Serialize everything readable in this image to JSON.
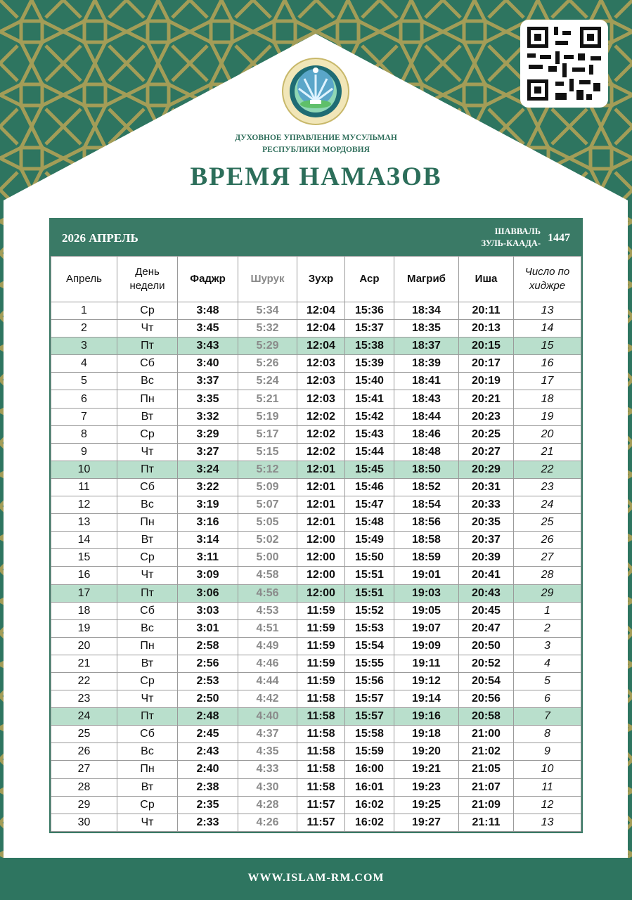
{
  "colors": {
    "brand_green": "#2e7560",
    "table_header": "#3a7a66",
    "highlight_row": "#b9dfcc",
    "ornament_gold": "#b8a455"
  },
  "header": {
    "org_line1": "ДУХОВНОЕ УПРАВЛЕНИЕ МУСУЛЬМАН",
    "org_line2": "РЕСПУБЛИКИ МОРДОВИЯ",
    "title": "ВРЕМЯ НАМАЗОВ",
    "logo_icon": "crescent-emblem-icon",
    "qr_icon": "qr-code-icon"
  },
  "table": {
    "year_month": "2026  АПРЕЛЬ",
    "hijri_month1": "ШАВВАЛЬ",
    "hijri_month2": "ЗУЛЬ-КААДА-",
    "hijri_year": "1447",
    "columns": [
      "Апрель",
      "День недели",
      "Фаджр",
      "Шурук",
      "Зухр",
      "Аср",
      "Магриб",
      "Иша",
      "Число по хиджре"
    ],
    "rows": [
      {
        "day": "1",
        "wd": "Ср",
        "times": [
          "3:48",
          "5:34",
          "12:04",
          "15:36",
          "18:34",
          "20:11"
        ],
        "hijri": "13",
        "highlight": false
      },
      {
        "day": "2",
        "wd": "Чт",
        "times": [
          "3:45",
          "5:32",
          "12:04",
          "15:37",
          "18:35",
          "20:13"
        ],
        "hijri": "14",
        "highlight": false
      },
      {
        "day": "3",
        "wd": "Пт",
        "times": [
          "3:43",
          "5:29",
          "12:04",
          "15:38",
          "18:37",
          "20:15"
        ],
        "hijri": "15",
        "highlight": true
      },
      {
        "day": "4",
        "wd": "Сб",
        "times": [
          "3:40",
          "5:26",
          "12:03",
          "15:39",
          "18:39",
          "20:17"
        ],
        "hijri": "16",
        "highlight": false
      },
      {
        "day": "5",
        "wd": "Вс",
        "times": [
          "3:37",
          "5:24",
          "12:03",
          "15:40",
          "18:41",
          "20:19"
        ],
        "hijri": "17",
        "highlight": false
      },
      {
        "day": "6",
        "wd": "Пн",
        "times": [
          "3:35",
          "5:21",
          "12:03",
          "15:41",
          "18:43",
          "20:21"
        ],
        "hijri": "18",
        "highlight": false
      },
      {
        "day": "7",
        "wd": "Вт",
        "times": [
          "3:32",
          "5:19",
          "12:02",
          "15:42",
          "18:44",
          "20:23"
        ],
        "hijri": "19",
        "highlight": false
      },
      {
        "day": "8",
        "wd": "Ср",
        "times": [
          "3:29",
          "5:17",
          "12:02",
          "15:43",
          "18:46",
          "20:25"
        ],
        "hijri": "20",
        "highlight": false
      },
      {
        "day": "9",
        "wd": "Чт",
        "times": [
          "3:27",
          "5:15",
          "12:02",
          "15:44",
          "18:48",
          "20:27"
        ],
        "hijri": "21",
        "highlight": false
      },
      {
        "day": "10",
        "wd": "Пт",
        "times": [
          "3:24",
          "5:12",
          "12:01",
          "15:45",
          "18:50",
          "20:29"
        ],
        "hijri": "22",
        "highlight": true
      },
      {
        "day": "11",
        "wd": "Сб",
        "times": [
          "3:22",
          "5:09",
          "12:01",
          "15:46",
          "18:52",
          "20:31"
        ],
        "hijri": "23",
        "highlight": false
      },
      {
        "day": "12",
        "wd": "Вс",
        "times": [
          "3:19",
          "5:07",
          "12:01",
          "15:47",
          "18:54",
          "20:33"
        ],
        "hijri": "24",
        "highlight": false
      },
      {
        "day": "13",
        "wd": "Пн",
        "times": [
          "3:16",
          "5:05",
          "12:01",
          "15:48",
          "18:56",
          "20:35"
        ],
        "hijri": "25",
        "highlight": false
      },
      {
        "day": "14",
        "wd": "Вт",
        "times": [
          "3:14",
          "5:02",
          "12:00",
          "15:49",
          "18:58",
          "20:37"
        ],
        "hijri": "26",
        "highlight": false
      },
      {
        "day": "15",
        "wd": "Ср",
        "times": [
          "3:11",
          "5:00",
          "12:00",
          "15:50",
          "18:59",
          "20:39"
        ],
        "hijri": "27",
        "highlight": false
      },
      {
        "day": "16",
        "wd": "Чт",
        "times": [
          "3:09",
          "4:58",
          "12:00",
          "15:51",
          "19:01",
          "20:41"
        ],
        "hijri": "28",
        "highlight": false
      },
      {
        "day": "17",
        "wd": "Пт",
        "times": [
          "3:06",
          "4:56",
          "12:00",
          "15:51",
          "19:03",
          "20:43"
        ],
        "hijri": "29",
        "highlight": true
      },
      {
        "day": "18",
        "wd": "Сб",
        "times": [
          "3:03",
          "4:53",
          "11:59",
          "15:52",
          "19:05",
          "20:45"
        ],
        "hijri": "1",
        "highlight": false
      },
      {
        "day": "19",
        "wd": "Вс",
        "times": [
          "3:01",
          "4:51",
          "11:59",
          "15:53",
          "19:07",
          "20:47"
        ],
        "hijri": "2",
        "highlight": false
      },
      {
        "day": "20",
        "wd": "Пн",
        "times": [
          "2:58",
          "4:49",
          "11:59",
          "15:54",
          "19:09",
          "20:50"
        ],
        "hijri": "3",
        "highlight": false
      },
      {
        "day": "21",
        "wd": "Вт",
        "times": [
          "2:56",
          "4:46",
          "11:59",
          "15:55",
          "19:11",
          "20:52"
        ],
        "hijri": "4",
        "highlight": false
      },
      {
        "day": "22",
        "wd": "Ср",
        "times": [
          "2:53",
          "4:44",
          "11:59",
          "15:56",
          "19:12",
          "20:54"
        ],
        "hijri": "5",
        "highlight": false
      },
      {
        "day": "23",
        "wd": "Чт",
        "times": [
          "2:50",
          "4:42",
          "11:58",
          "15:57",
          "19:14",
          "20:56"
        ],
        "hijri": "6",
        "highlight": false
      },
      {
        "day": "24",
        "wd": "Пт",
        "times": [
          "2:48",
          "4:40",
          "11:58",
          "15:57",
          "19:16",
          "20:58"
        ],
        "hijri": "7",
        "highlight": true
      },
      {
        "day": "25",
        "wd": "Сб",
        "times": [
          "2:45",
          "4:37",
          "11:58",
          "15:58",
          "19:18",
          "21:00"
        ],
        "hijri": "8",
        "highlight": false
      },
      {
        "day": "26",
        "wd": "Вс",
        "times": [
          "2:43",
          "4:35",
          "11:58",
          "15:59",
          "19:20",
          "21:02"
        ],
        "hijri": "9",
        "highlight": false
      },
      {
        "day": "27",
        "wd": "Пн",
        "times": [
          "2:40",
          "4:33",
          "11:58",
          "16:00",
          "19:21",
          "21:05"
        ],
        "hijri": "10",
        "highlight": false
      },
      {
        "day": "28",
        "wd": "Вт",
        "times": [
          "2:38",
          "4:30",
          "11:58",
          "16:01",
          "19:23",
          "21:07"
        ],
        "hijri": "11",
        "highlight": false
      },
      {
        "day": "29",
        "wd": "Ср",
        "times": [
          "2:35",
          "4:28",
          "11:57",
          "16:02",
          "19:25",
          "21:09"
        ],
        "hijri": "12",
        "highlight": false
      },
      {
        "day": "30",
        "wd": "Чт",
        "times": [
          "2:33",
          "4:26",
          "11:57",
          "16:02",
          "19:27",
          "21:11"
        ],
        "hijri": "13",
        "highlight": false
      }
    ]
  },
  "footer": {
    "website": "WWW.ISLAM-RM.COM"
  }
}
